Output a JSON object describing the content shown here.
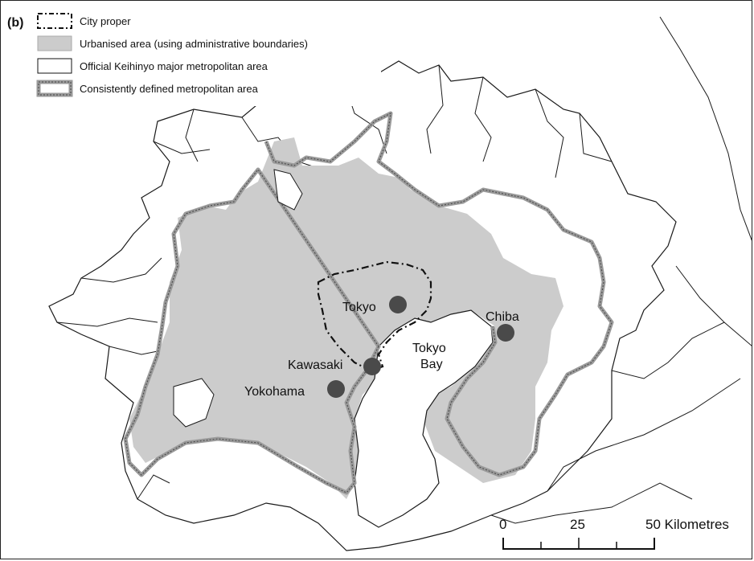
{
  "figure": {
    "panel_label": "(b)"
  },
  "legend": {
    "items": [
      {
        "label": "City proper",
        "symbol": "dashed-outline"
      },
      {
        "label": "Urbanised area (using administrative boundaries)",
        "symbol": "grey-fill",
        "color": "#cccccc"
      },
      {
        "label": "Official Keihinyo major metropolitan area",
        "symbol": "white-fill"
      },
      {
        "label": "Consistently defined metropolitan area",
        "symbol": "thick-grey-outline",
        "color": "#9a9a9a"
      }
    ]
  },
  "places": {
    "cities": [
      "Tokyo",
      "Kawasaki",
      "Yokohama",
      "Chiba"
    ],
    "bay_line1": "Tokyo",
    "bay_line2": "Bay"
  },
  "scale_bar": {
    "ticks": [
      "0",
      "25",
      "50 Kilometres"
    ]
  },
  "colors": {
    "urban_fill": "#cccccc",
    "metro_outline": "#9a9a9a",
    "city_marker": "#4a4a4a",
    "boundary": "#1a1a1a"
  }
}
